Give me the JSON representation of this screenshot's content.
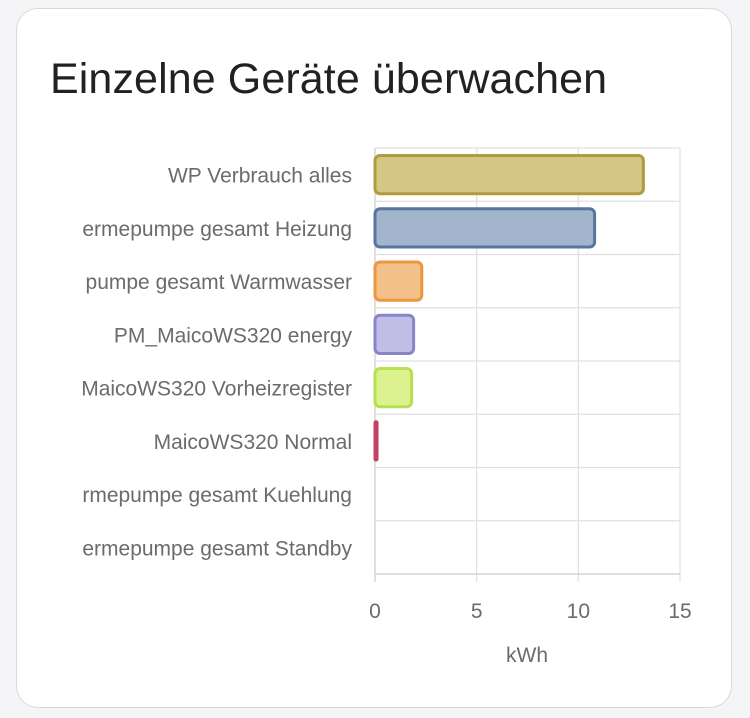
{
  "card": {
    "title": "Einzelne Geräte überwachen"
  },
  "chart_data": {
    "type": "bar",
    "orientation": "horizontal",
    "categories": [
      "WP Verbrauch alles",
      "ermepumpe gesamt Heizung",
      "pumpe gesamt Warmwasser",
      "PM_MaicoWS320 energy",
      "MaicoWS320 Vorheizregister",
      "MaicoWS320 Normal",
      "rmepumpe gesamt Kuehlung",
      "ermepumpe gesamt Standby"
    ],
    "values": [
      13.2,
      10.8,
      2.3,
      1.9,
      1.8,
      0.1,
      0,
      0
    ],
    "bar_colors": [
      "#d4c785",
      "#a2b5cc",
      "#f4c08a",
      "#c0bde6",
      "#dcf28e",
      "#e6a7b8",
      "#cccccc",
      "#cccccc"
    ],
    "border_colors": [
      "#b29b3e",
      "#5a759b",
      "#ec9640",
      "#8785c6",
      "#b6e052",
      "#c44064",
      "#999999",
      "#999999"
    ],
    "x_ticks": [
      0,
      5,
      10,
      15
    ],
    "xlim": [
      0,
      15
    ],
    "xlabel": "kWh",
    "ylabel": "",
    "grid": true
  }
}
